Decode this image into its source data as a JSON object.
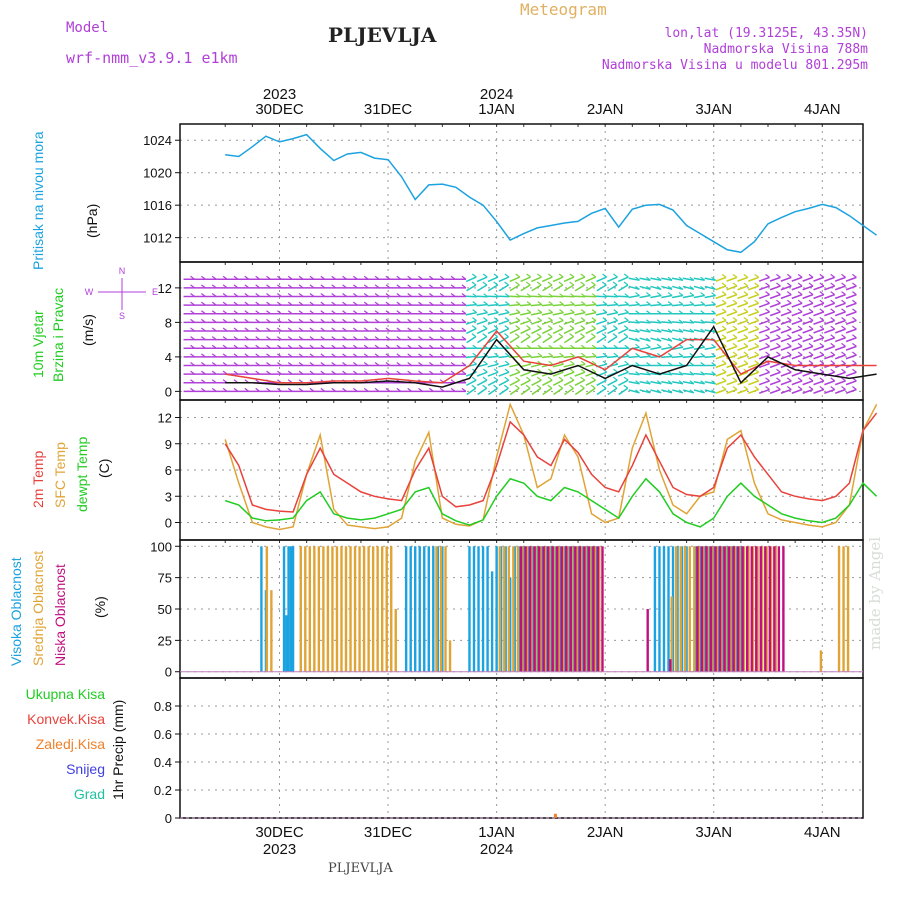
{
  "header": {
    "model_label": "Model",
    "model_name": "wrf-nmm_v3.9.1 e1km",
    "title": "PLJEVLJA",
    "meteogram": "Meteogram",
    "lonlat": "lon,lat (19.3125E, 43.35N)",
    "altitude": "Nadmorska Visina 788m",
    "model_altitude": "Nadmorska Visina u modelu 801.295m",
    "footer": "PLJEVLJA",
    "watermark": "made by Angel"
  },
  "colors": {
    "pressure": "#1ba2e0",
    "temp2m": "#e8423c",
    "sfc": "#e0a436",
    "dewpt": "#22cc22",
    "high_cloud": "#1ba2e0",
    "mid_cloud": "#e0a436",
    "low_cloud": "#c01080",
    "wind_speed": "#111111",
    "gust": "#e8423c",
    "magenta": "#b040d8",
    "grid": "#999999"
  },
  "time_axis": {
    "top_years": [
      "2023",
      "2024"
    ],
    "bottom_years": [
      "2023",
      "2024"
    ],
    "days": [
      "30DEC",
      "31DEC",
      "1JAN",
      "2JAN",
      "3JAN",
      "4JAN"
    ]
  },
  "chart_data": [
    {
      "type": "line",
      "panel": "pressure",
      "ylabel": "Pritisak na nivou mora",
      "unit": "(hPa)",
      "ylim": [
        1009,
        1026
      ],
      "yticks": [
        1012,
        1016,
        1020,
        1024
      ],
      "x_hours": [
        0,
        3,
        6,
        9,
        12,
        15,
        18,
        21,
        24,
        27,
        30,
        33,
        36,
        39,
        42,
        45,
        48,
        51,
        54,
        57,
        60,
        63,
        66,
        69,
        72,
        75,
        78,
        81,
        84,
        87,
        90,
        93,
        96,
        99,
        102,
        105,
        108,
        111,
        114,
        117,
        120,
        123,
        126,
        129,
        132,
        135,
        138,
        141,
        144
      ],
      "series": [
        {
          "name": "MSLP",
          "values": [
            1022.2,
            1022.0,
            1023.2,
            1024.5,
            1023.8,
            1024.2,
            1024.7,
            1023.0,
            1021.5,
            1022.3,
            1022.5,
            1021.8,
            1021.6,
            1019.5,
            1016.7,
            1018.5,
            1018.6,
            1018.2,
            1017.0,
            1016.0,
            1014.0,
            1011.7,
            1012.5,
            1013.2,
            1013.5,
            1013.8,
            1014.0,
            1015.0,
            1015.6,
            1013.3,
            1015.5,
            1016.0,
            1016.1,
            1015.4,
            1013.5,
            1012.5,
            1011.5,
            1010.5,
            1010.2,
            1011.5,
            1013.7,
            1014.5,
            1015.2,
            1015.6,
            1016.1,
            1015.7,
            1014.7,
            1013.5,
            1012.3
          ]
        }
      ],
      "grid": true
    },
    {
      "type": "wind",
      "panel": "wind",
      "ylabel": [
        "10m Vjetar",
        "Brzina i Pravac"
      ],
      "unit": "(m/s)",
      "ylim": [
        -1,
        15
      ],
      "yticks": [
        0,
        4,
        8,
        12
      ],
      "compass": {
        "n": "N",
        "s": "S",
        "e": "E",
        "w": "W"
      },
      "x_hours": [
        0,
        6,
        12,
        18,
        24,
        30,
        36,
        42,
        48,
        54,
        60,
        66,
        72,
        78,
        84,
        90,
        96,
        102,
        108,
        114,
        120,
        126,
        132,
        138,
        144
      ],
      "series": [
        {
          "name": "speed",
          "values": [
            1.0,
            1.0,
            0.8,
            0.8,
            1.0,
            1.0,
            1.2,
            1.0,
            0.5,
            1.5,
            6.0,
            2.5,
            2.0,
            3.0,
            1.5,
            3.0,
            2.0,
            3.0,
            7.5,
            1.0,
            4.0,
            2.5,
            2.0,
            1.5,
            2.0
          ]
        },
        {
          "name": "gust",
          "values": [
            2.0,
            1.5,
            1.0,
            1.0,
            1.2,
            1.2,
            1.5,
            1.2,
            1.0,
            3.0,
            7.0,
            3.5,
            3.0,
            4.0,
            2.5,
            5.0,
            4.0,
            6.0,
            6.0,
            2.0,
            3.5,
            3.0,
            3.0,
            3.0,
            3.0
          ]
        }
      ],
      "grid": true
    },
    {
      "type": "line",
      "panel": "temperature",
      "ylabel": [
        "2m Temp",
        "SFC Temp",
        "dewpt Temp"
      ],
      "unit": "(C)",
      "ylim": [
        -2,
        14
      ],
      "yticks": [
        0,
        3,
        6,
        9,
        12
      ],
      "x_hours": [
        0,
        3,
        6,
        9,
        12,
        15,
        18,
        21,
        24,
        27,
        30,
        33,
        36,
        39,
        42,
        45,
        48,
        51,
        54,
        57,
        60,
        63,
        66,
        69,
        72,
        75,
        78,
        81,
        84,
        87,
        90,
        93,
        96,
        99,
        102,
        105,
        108,
        111,
        114,
        117,
        120,
        123,
        126,
        129,
        132,
        135,
        138,
        141,
        144
      ],
      "series": [
        {
          "name": "2m",
          "values": [
            9.0,
            6.5,
            2.0,
            1.5,
            1.3,
            1.2,
            5.5,
            8.5,
            5.5,
            4.5,
            3.5,
            3.0,
            2.7,
            2.5,
            6.0,
            8.5,
            3.0,
            1.8,
            2.0,
            2.5,
            6.5,
            11.5,
            10.0,
            7.5,
            6.5,
            9.5,
            8.0,
            5.5,
            4.0,
            3.5,
            6.5,
            10.0,
            7.0,
            4.0,
            3.2,
            3.0,
            4.0,
            8.5,
            10.0,
            7.5,
            5.5,
            3.5,
            3.0,
            2.7,
            2.5,
            3.0,
            4.5,
            10.5,
            12.5
          ]
        },
        {
          "name": "SFC",
          "values": [
            9.5,
            4.5,
            0.0,
            -0.5,
            -0.8,
            -0.5,
            5.5,
            10.0,
            1.5,
            -0.3,
            -0.5,
            -0.7,
            -0.5,
            0.5,
            7.0,
            10.3,
            0.5,
            -0.2,
            -0.4,
            0.3,
            7.5,
            13.5,
            10.0,
            4.0,
            5.0,
            10.0,
            7.5,
            1.0,
            0.0,
            0.5,
            8.5,
            12.5,
            6.0,
            2.0,
            1.0,
            3.0,
            3.5,
            9.5,
            10.5,
            4.5,
            1.0,
            0.3,
            0.0,
            -0.3,
            -0.5,
            0.0,
            2.0,
            10.5,
            13.5
          ]
        },
        {
          "name": "dewpt",
          "values": [
            2.5,
            2.0,
            0.5,
            0.2,
            0.3,
            0.5,
            2.5,
            3.5,
            1.0,
            0.5,
            0.3,
            0.5,
            1.0,
            1.5,
            3.5,
            4.0,
            1.0,
            0.2,
            -0.3,
            0.3,
            3.0,
            5.0,
            4.5,
            3.0,
            2.5,
            4.0,
            3.5,
            2.5,
            1.5,
            0.5,
            3.0,
            5.0,
            3.5,
            1.0,
            0.0,
            -0.5,
            0.5,
            3.0,
            4.5,
            3.0,
            2.0,
            1.0,
            0.5,
            0.2,
            0.0,
            0.5,
            2.0,
            4.5,
            3.0
          ]
        }
      ],
      "grid": true
    },
    {
      "type": "bar",
      "panel": "cloud",
      "ylabel": [
        "Visoka Oblacnost",
        "Srednja Oblacnost",
        "Niska Oblacnost"
      ],
      "unit": "(%)",
      "ylim": [
        -5,
        105
      ],
      "yticks": [
        0,
        25,
        50,
        75,
        100
      ],
      "series": [
        {
          "name": "Visoka",
          "x": [
            8,
            9,
            13,
            13.5,
            14,
            14.5,
            15,
            40,
            41,
            42,
            43,
            44,
            45,
            46,
            47,
            48,
            54,
            55,
            56,
            57,
            58,
            59,
            60,
            61,
            62,
            63,
            64,
            65,
            66,
            67,
            68,
            69,
            70,
            71,
            72,
            73,
            74,
            75,
            76,
            77,
            78,
            79,
            80,
            81,
            82,
            95,
            96,
            97,
            98,
            99,
            100,
            101,
            102,
            104,
            105,
            106,
            107,
            108,
            109,
            110,
            111,
            112,
            113,
            114
          ],
          "values": [
            100,
            65,
            100,
            45,
            100,
            100,
            100,
            100,
            100,
            100,
            100,
            100,
            100,
            100,
            100,
            100,
            100,
            100,
            100,
            100,
            100,
            80,
            100,
            100,
            100,
            75,
            100,
            100,
            100,
            100,
            100,
            100,
            100,
            100,
            100,
            100,
            100,
            100,
            100,
            100,
            100,
            100,
            100,
            100,
            100,
            100,
            100,
            100,
            100,
            100,
            100,
            100,
            100,
            100,
            100,
            100,
            100,
            100,
            100,
            100,
            100,
            100,
            100,
            100
          ]
        },
        {
          "name": "Srednja",
          "x": [
            8.5,
            9.5,
            16,
            17,
            18,
            19,
            20,
            21,
            22,
            23,
            24,
            25,
            26,
            27,
            28,
            29,
            30,
            31,
            32,
            33,
            34,
            35,
            36,
            37,
            46,
            47,
            48,
            49,
            60,
            61,
            62,
            63,
            64,
            65,
            66,
            67,
            68,
            69,
            70,
            71,
            72,
            73,
            74,
            75,
            76,
            77,
            78,
            79,
            80,
            81,
            82,
            98,
            99,
            100,
            101,
            102,
            103,
            104,
            105,
            106,
            107,
            108,
            109,
            110,
            111,
            112,
            113,
            114,
            115,
            116,
            117,
            118,
            119,
            120,
            121,
            131,
            135,
            136,
            137
          ],
          "values": [
            100,
            65,
            100,
            100,
            100,
            100,
            100,
            100,
            100,
            100,
            100,
            100,
            100,
            100,
            100,
            100,
            100,
            100,
            100,
            100,
            100,
            100,
            100,
            50,
            100,
            100,
            100,
            25,
            100,
            100,
            100,
            100,
            100,
            100,
            100,
            100,
            100,
            100,
            100,
            100,
            100,
            100,
            100,
            100,
            100,
            100,
            100,
            100,
            100,
            100,
            100,
            60,
            100,
            100,
            100,
            100,
            100,
            100,
            100,
            100,
            100,
            100,
            100,
            100,
            100,
            100,
            100,
            100,
            100,
            100,
            100,
            100,
            100,
            100,
            100,
            17,
            100,
            100,
            100
          ]
        },
        {
          "name": "Niska",
          "x": [
            64,
            65,
            66,
            67,
            68,
            69,
            70,
            71,
            72,
            73,
            74,
            75,
            76,
            77,
            78,
            79,
            80,
            81,
            82,
            92,
            97,
            103,
            104,
            105,
            106,
            107,
            108,
            109,
            110,
            111,
            112,
            113,
            114,
            115,
            116,
            117,
            118,
            119,
            120,
            121,
            122
          ],
          "values": [
            100,
            100,
            100,
            100,
            100,
            100,
            100,
            100,
            100,
            100,
            100,
            100,
            100,
            100,
            100,
            100,
            100,
            100,
            100,
            50,
            10,
            100,
            100,
            100,
            100,
            100,
            100,
            100,
            100,
            100,
            100,
            100,
            100,
            100,
            100,
            100,
            100,
            100,
            100,
            100,
            100
          ]
        }
      ],
      "grid": true
    },
    {
      "type": "bar",
      "panel": "precip",
      "ylabel": "1hr Precip (mm)",
      "ylim": [
        0,
        1
      ],
      "yticks": [
        0,
        0.2,
        0.4,
        0.6,
        0.8
      ],
      "legend": [
        "Ukupna Kisa",
        "Konvek.Kisa",
        "Zaledj.Kisa",
        "Snijeg",
        "Grad"
      ],
      "legend_colors": [
        "#22cc22",
        "#e8423c",
        "#f0802a",
        "#4040e0",
        "#20c0a0"
      ],
      "series": [
        {
          "name": "Zaledj.Kisa",
          "x": [
            73
          ],
          "values": [
            0.03
          ]
        }
      ],
      "grid": true
    }
  ]
}
